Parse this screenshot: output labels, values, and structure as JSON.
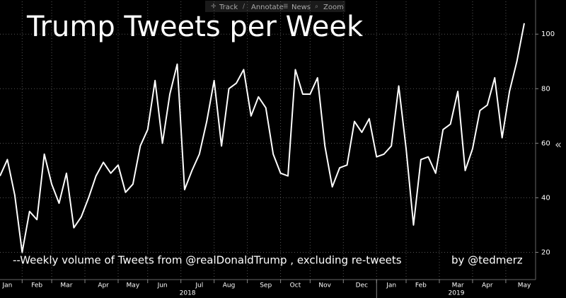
{
  "toolbar": [
    "Track",
    "Annotate",
    "News",
    "Zoom"
  ],
  "chart_data": {
    "type": "line",
    "title": "Trump Tweets per Week",
    "subtitle": "--Weekly volume of Tweets from @realDonaldTrump , excluding re-tweets",
    "credit": "by @tedmerz",
    "categories": [
      null,
      "Jan",
      null,
      null,
      null,
      "Feb",
      null,
      null,
      null,
      "Mar",
      null,
      null,
      null,
      null,
      "Apr",
      null,
      null,
      null,
      "May",
      null,
      null,
      null,
      "Jun",
      null,
      null,
      null,
      null,
      "Jul",
      null,
      null,
      null,
      "Aug",
      null,
      null,
      null,
      null,
      "Sep",
      null,
      null,
      null,
      "Oct",
      null,
      null,
      null,
      "Nov",
      null,
      null,
      null,
      null,
      "Dec",
      null,
      null,
      null,
      "Jan",
      null,
      null,
      null,
      "Feb",
      null,
      null,
      null,
      null,
      "Mar",
      null,
      null,
      null,
      "Apr",
      null,
      null,
      null,
      null,
      "May"
    ],
    "year_labels": [
      "2018",
      "2019"
    ],
    "values": [
      48,
      54,
      41,
      20,
      35,
      32,
      56,
      45,
      38,
      49,
      29,
      33,
      40,
      48,
      53,
      49,
      52,
      42,
      45,
      59,
      65,
      83,
      60,
      78,
      89,
      43,
      50,
      56,
      68,
      83,
      59,
      80,
      82,
      87,
      70,
      77,
      73,
      56,
      49,
      48,
      87,
      78,
      78,
      84,
      59,
      44,
      51,
      52,
      68,
      64,
      69,
      55,
      56,
      59,
      81,
      58,
      30,
      54,
      55,
      49,
      65,
      67,
      79,
      50,
      58,
      72,
      74,
      84,
      62,
      79,
      90,
      104
    ],
    "color": "#ffffff",
    "ylim": [
      10,
      112
    ],
    "yticks": [
      20,
      40,
      60,
      80,
      100
    ],
    "grid": true
  }
}
